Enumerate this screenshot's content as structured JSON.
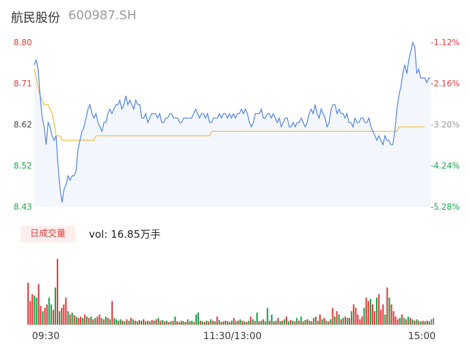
{
  "header": {
    "name": "航民股份",
    "code": "600987.SH"
  },
  "volume_badge": "日成交量",
  "volume_text": "vol: 16.85万手",
  "colors": {
    "up": "#e23b3b",
    "down": "#1aa34a",
    "flat": "#888888",
    "price_line": "#4a7fe0",
    "avg_line": "#f2b630",
    "area": "#f3f6fd"
  },
  "chart_data": [
    {
      "type": "line",
      "y_left_ticks": [
        "8.80",
        "8.71",
        "8.62",
        "8.52",
        "8.43"
      ],
      "y_right_ticks": [
        "-1.12%",
        "-2.16%",
        "-3.20%",
        "-4.24%",
        "-5.28%"
      ],
      "ylim": [
        8.43,
        8.8
      ],
      "x_ticks": [
        "09:30",
        "11:30/13:00",
        "15:00"
      ],
      "series": [
        {
          "role": "price",
          "values": [
            8.75,
            8.76,
            8.74,
            8.68,
            8.63,
            8.61,
            8.57,
            8.62,
            8.61,
            8.59,
            8.58,
            8.59,
            8.52,
            8.47,
            8.44,
            8.47,
            8.48,
            8.5,
            8.49,
            8.5,
            8.5,
            8.51,
            8.56,
            8.58,
            8.6,
            8.61,
            8.63,
            8.65,
            8.66,
            8.64,
            8.63,
            8.64,
            8.62,
            8.61,
            8.6,
            8.62,
            8.62,
            8.64,
            8.65,
            8.64,
            8.65,
            8.66,
            8.66,
            8.67,
            8.65,
            8.66,
            8.68,
            8.66,
            8.67,
            8.66,
            8.65,
            8.67,
            8.66,
            8.66,
            8.63,
            8.63,
            8.64,
            8.62,
            8.63,
            8.64,
            8.64,
            8.64,
            8.63,
            8.64,
            8.62,
            8.62,
            8.63,
            8.63,
            8.64,
            8.64,
            8.63,
            8.63,
            8.63,
            8.62,
            8.62,
            8.63,
            8.63,
            8.63,
            8.63,
            8.63,
            8.64,
            8.65,
            8.64,
            8.63,
            8.64,
            8.64,
            8.63,
            8.64,
            8.62,
            8.62,
            8.63,
            8.63,
            8.63,
            8.64,
            8.63,
            8.64,
            8.64,
            8.63,
            8.64,
            8.63,
            8.64,
            8.63,
            8.64,
            8.64,
            8.65,
            8.64,
            8.65,
            8.64,
            8.62,
            8.61,
            8.62,
            8.64,
            8.64,
            8.64,
            8.65,
            8.63,
            8.63,
            8.64,
            8.64,
            8.63,
            8.64,
            8.63,
            8.62,
            8.63,
            8.61,
            8.62,
            8.63,
            8.63,
            8.61,
            8.61,
            8.62,
            8.61,
            8.62,
            8.62,
            8.63,
            8.62,
            8.61,
            8.62,
            8.64,
            8.65,
            8.64,
            8.66,
            8.64,
            8.63,
            8.65,
            8.64,
            8.63,
            8.61,
            8.62,
            8.65,
            8.66,
            8.66,
            8.64,
            8.65,
            8.64,
            8.64,
            8.63,
            8.64,
            8.62,
            8.62,
            8.61,
            8.63,
            8.62,
            8.62,
            8.63,
            8.63,
            8.62,
            8.62,
            8.63,
            8.61,
            8.6,
            8.59,
            8.58,
            8.59,
            8.58,
            8.57,
            8.59,
            8.58,
            8.58,
            8.57,
            8.57,
            8.6,
            8.65,
            8.68,
            8.7,
            8.73,
            8.75,
            8.73,
            8.76,
            8.78,
            8.8,
            8.79,
            8.73,
            8.74,
            8.72,
            8.72,
            8.72,
            8.71,
            8.72,
            8.72
          ]
        },
        {
          "role": "average",
          "values": [
            8.74,
            8.72,
            8.7,
            8.68,
            8.67,
            8.66,
            8.66,
            8.66,
            8.65,
            8.64,
            8.62,
            8.59,
            8.59,
            8.59,
            8.58,
            8.58,
            8.58,
            8.58,
            8.58,
            8.58,
            8.58,
            8.58,
            8.58,
            8.58,
            8.58,
            8.58,
            8.58,
            8.58,
            8.58,
            8.58,
            8.58,
            8.59,
            8.59,
            8.59,
            8.59,
            8.59,
            8.59,
            8.59,
            8.59,
            8.59,
            8.59,
            8.59,
            8.59,
            8.59,
            8.59,
            8.59,
            8.59,
            8.59,
            8.59,
            8.59,
            8.59,
            8.59,
            8.59,
            8.59,
            8.59,
            8.59,
            8.59,
            8.59,
            8.59,
            8.59,
            8.59,
            8.59,
            8.59,
            8.59,
            8.59,
            8.59,
            8.59,
            8.59,
            8.59,
            8.59,
            8.59,
            8.59,
            8.59,
            8.59,
            8.59,
            8.59,
            8.59,
            8.59,
            8.59,
            8.59,
            8.59,
            8.59,
            8.59,
            8.59,
            8.59,
            8.59,
            8.59,
            8.59,
            8.59,
            8.6,
            8.6,
            8.6,
            8.6,
            8.6,
            8.6,
            8.6,
            8.6,
            8.6,
            8.6,
            8.6,
            8.6,
            8.6,
            8.6,
            8.6,
            8.6,
            8.6,
            8.6,
            8.6,
            8.6,
            8.6,
            8.6,
            8.6,
            8.6,
            8.6,
            8.6,
            8.6,
            8.6,
            8.6,
            8.6,
            8.6,
            8.6,
            8.6,
            8.6,
            8.6,
            8.6,
            8.6,
            8.6,
            8.6,
            8.6,
            8.6,
            8.6,
            8.6,
            8.6,
            8.6,
            8.6,
            8.6,
            8.6,
            8.6,
            8.6,
            8.6,
            8.6,
            8.6,
            8.6,
            8.6,
            8.6,
            8.6,
            8.6,
            8.6,
            8.6,
            8.6,
            8.6,
            8.6,
            8.6,
            8.6,
            8.6,
            8.6,
            8.6,
            8.6,
            8.6,
            8.6,
            8.6,
            8.6,
            8.6,
            8.6,
            8.6,
            8.6,
            8.6,
            8.6,
            8.6,
            8.6,
            8.6,
            8.6,
            8.6,
            8.6,
            8.6,
            8.6,
            8.6,
            8.6,
            8.6,
            8.6,
            8.6,
            8.6,
            8.6,
            8.61,
            8.61,
            8.61,
            8.61,
            8.61,
            8.61,
            8.61,
            8.61,
            8.61,
            8.61,
            8.61,
            8.61,
            8.61,
            8.61
          ]
        }
      ]
    },
    {
      "type": "bar",
      "ylim": [
        0,
        1.0
      ],
      "values": [
        0.62,
        0.35,
        0.45,
        0.43,
        0.4,
        0.6,
        0.28,
        0.2,
        0.25,
        0.3,
        0.4,
        0.3,
        0.22,
        0.55,
        0.97,
        0.2,
        0.25,
        0.3,
        0.4,
        0.2,
        0.15,
        0.18,
        0.14,
        0.12,
        0.1,
        0.12,
        0.1,
        0.15,
        0.12,
        0.1,
        0.12,
        0.08,
        0.1,
        0.12,
        0.15,
        0.1,
        0.08,
        0.12,
        0.1,
        0.08,
        0.35,
        0.1,
        0.08,
        0.06,
        0.08,
        0.06,
        0.05,
        0.08,
        0.06,
        0.1,
        0.08,
        0.06,
        0.05,
        0.07,
        0.06,
        0.08,
        0.05,
        0.06,
        0.05,
        0.07,
        0.06,
        0.08,
        0.1,
        0.06,
        0.07,
        0.05,
        0.06,
        0.04,
        0.05,
        0.06,
        0.12,
        0.05,
        0.04,
        0.06,
        0.05,
        0.04,
        0.08,
        0.05,
        0.06,
        0.04,
        0.15,
        0.18,
        0.06,
        0.05,
        0.04,
        0.06,
        0.05,
        0.08,
        0.06,
        0.05,
        0.12,
        0.07,
        0.04,
        0.05,
        0.06,
        0.05,
        0.04,
        0.06,
        0.1,
        0.05,
        0.06,
        0.08,
        0.06,
        0.05,
        0.04,
        0.06,
        0.12,
        0.08,
        0.06,
        0.18,
        0.05,
        0.06,
        0.08,
        0.05,
        0.25,
        0.06,
        0.15,
        0.05,
        0.06,
        0.1,
        0.05,
        0.06,
        0.08,
        0.12,
        0.05,
        0.07,
        0.06,
        0.05,
        0.1,
        0.06,
        0.12,
        0.05,
        0.07,
        0.08,
        0.06,
        0.05,
        0.1,
        0.12,
        0.06,
        0.15,
        0.08,
        0.1,
        0.06,
        0.05,
        0.08,
        0.25,
        0.12,
        0.2,
        0.15,
        0.08,
        0.1,
        0.12,
        0.1,
        0.1,
        0.2,
        0.3,
        0.25,
        0.15,
        0.08,
        0.12,
        0.25,
        0.4,
        0.35,
        0.38,
        0.3,
        0.2,
        0.4,
        0.45,
        0.22,
        0.3,
        0.15,
        0.55,
        0.4,
        0.3,
        0.2,
        0.12,
        0.08,
        0.1,
        0.15,
        0.1,
        0.08,
        0.12,
        0.1,
        0.08,
        0.06,
        0.08,
        0.06,
        0.05,
        0.06,
        0.05,
        0.06,
        0.05,
        0.08,
        0.1
      ],
      "directions": [
        "up",
        "up",
        "up",
        "down",
        "down",
        "up",
        "up",
        "down",
        "up",
        "up",
        "down",
        "down",
        "up",
        "down",
        "up",
        "down",
        "up",
        "up",
        "up",
        "down",
        "up",
        "down",
        "up",
        "down",
        "up",
        "up",
        "down",
        "up",
        "down",
        "up",
        "down",
        "up",
        "down",
        "up",
        "up",
        "down",
        "up",
        "down",
        "up",
        "down",
        "up",
        "down",
        "down",
        "up",
        "down",
        "up",
        "down",
        "up",
        "down",
        "up",
        "down",
        "up",
        "down",
        "up",
        "down",
        "up",
        "down",
        "up",
        "down",
        "up",
        "down",
        "up",
        "down",
        "up",
        "down",
        "up",
        "down",
        "up",
        "down",
        "up",
        "down",
        "up",
        "down",
        "up",
        "down",
        "up",
        "down",
        "up",
        "down",
        "up",
        "down",
        "down",
        "up",
        "down",
        "up",
        "down",
        "up",
        "down",
        "up",
        "down",
        "up",
        "down",
        "up",
        "down",
        "up",
        "down",
        "up",
        "down",
        "up",
        "down",
        "up",
        "down",
        "up",
        "down",
        "up",
        "down",
        "up",
        "down",
        "up",
        "down",
        "up",
        "down",
        "up",
        "down",
        "down",
        "up",
        "down",
        "up",
        "down",
        "up",
        "down",
        "up",
        "down",
        "up",
        "down",
        "up",
        "down",
        "up",
        "down",
        "up",
        "down",
        "up",
        "down",
        "up",
        "down",
        "up",
        "down",
        "up",
        "down",
        "up",
        "down",
        "up",
        "down",
        "up",
        "down",
        "up",
        "down",
        "up",
        "down",
        "up",
        "down",
        "up",
        "down",
        "up",
        "down",
        "up",
        "up",
        "up",
        "up",
        "up",
        "down",
        "up",
        "up",
        "down",
        "up",
        "up",
        "down",
        "up",
        "up",
        "up",
        "down",
        "up",
        "down",
        "up",
        "up",
        "up",
        "up",
        "down",
        "up",
        "down",
        "up",
        "down",
        "up",
        "down",
        "up",
        "down",
        "up",
        "down",
        "up",
        "down",
        "up",
        "down",
        "flat"
      ]
    }
  ]
}
